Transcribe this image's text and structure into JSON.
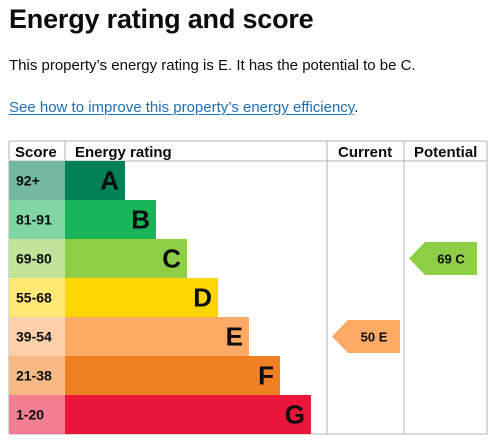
{
  "heading": "Energy rating and score",
  "summary": "This property’s energy rating is E. It has the potential to be C.",
  "link": {
    "text": "See how to improve this property’s energy efficiency",
    "trailing": "."
  },
  "chart_data": {
    "type": "table",
    "columns": [
      "Score",
      "Energy rating",
      "Current",
      "Potential"
    ],
    "bands": [
      {
        "score": "92+",
        "letter": "A",
        "color": "#008054"
      },
      {
        "score": "81-91",
        "letter": "B",
        "color": "#19b459"
      },
      {
        "score": "69-80",
        "letter": "C",
        "color": "#8dce46"
      },
      {
        "score": "55-68",
        "letter": "D",
        "color": "#ffd500"
      },
      {
        "score": "39-54",
        "letter": "E",
        "color": "#fcaa65"
      },
      {
        "score": "21-38",
        "letter": "F",
        "color": "#ef8023"
      },
      {
        "score": "1-20",
        "letter": "G",
        "color": "#e9153b"
      }
    ],
    "current": {
      "score": 50,
      "letter": "E",
      "label": "50 E",
      "band": "E",
      "color": "#fcaa65"
    },
    "potential": {
      "score": 69,
      "letter": "C",
      "label": "69 C",
      "band": "C",
      "color": "#8dce46"
    }
  }
}
